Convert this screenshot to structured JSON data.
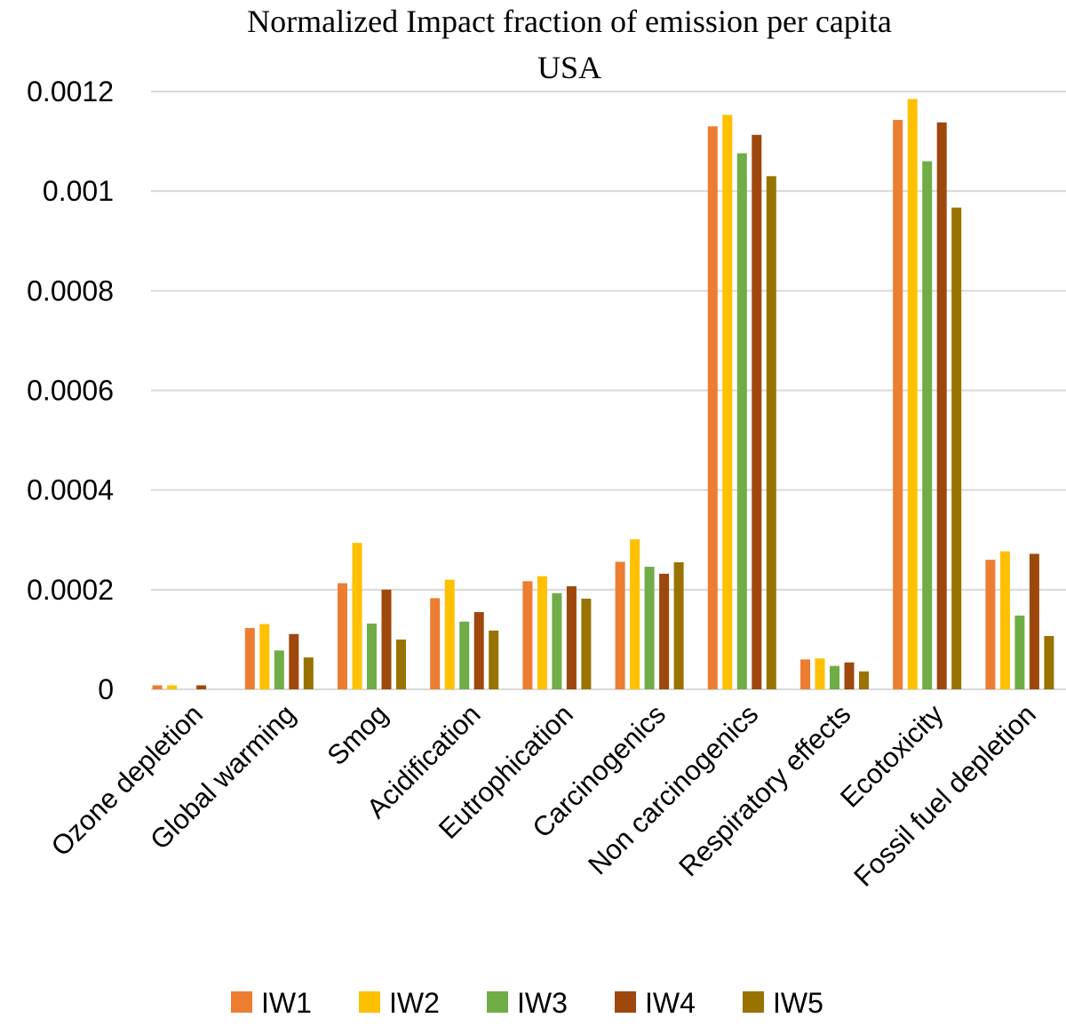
{
  "chart_data": {
    "type": "bar",
    "title": "Normalized Impact fraction of emission per capita",
    "subtitle": "USA",
    "xlabel": "",
    "ylabel": "",
    "ylim": [
      0,
      0.0012
    ],
    "yticks": [
      "0",
      "0.0002",
      "0.0004",
      "0.0006",
      "0.0008",
      "0.001",
      "0.0012"
    ],
    "ytick_values": [
      0,
      0.0002,
      0.0004,
      0.0006,
      0.0008,
      0.001,
      0.0012
    ],
    "grid": true,
    "legend_position": "bottom",
    "categories": [
      "Ozone depletion",
      "Global warming",
      "Smog",
      "Acidification",
      "Eutrophication",
      "Carcinogenics",
      "Non carcinogenics",
      "Respiratory effects",
      "Ecotoxicity",
      "Fossil fuel depletion"
    ],
    "series": [
      {
        "name": "IW1",
        "color": "#ED7D31",
        "values": [
          8e-06,
          0.000123,
          0.000213,
          0.000183,
          0.000217,
          0.000256,
          0.00113,
          6e-05,
          0.001143,
          0.00026
        ]
      },
      {
        "name": "IW2",
        "color": "#FFC000",
        "values": [
          8e-06,
          0.000131,
          0.000294,
          0.00022,
          0.000227,
          0.000301,
          0.001153,
          6.2e-05,
          0.001185,
          0.000277
        ]
      },
      {
        "name": "IW3",
        "color": "#70AD47",
        "values": [
          0.0,
          7.8e-05,
          0.000132,
          0.000136,
          0.000193,
          0.000246,
          0.001076,
          4.7e-05,
          0.00106,
          0.000148
        ]
      },
      {
        "name": "IW4",
        "color": "#9E480E",
        "values": [
          8e-06,
          0.000111,
          0.0002,
          0.000155,
          0.000207,
          0.000232,
          0.001113,
          5.4e-05,
          0.001138,
          0.000272
        ]
      },
      {
        "name": "IW5",
        "color": "#997300",
        "values": [
          0.0,
          6.4e-05,
          0.0001,
          0.000118,
          0.000182,
          0.000255,
          0.00103,
          3.6e-05,
          0.000967,
          0.000107
        ]
      }
    ]
  }
}
